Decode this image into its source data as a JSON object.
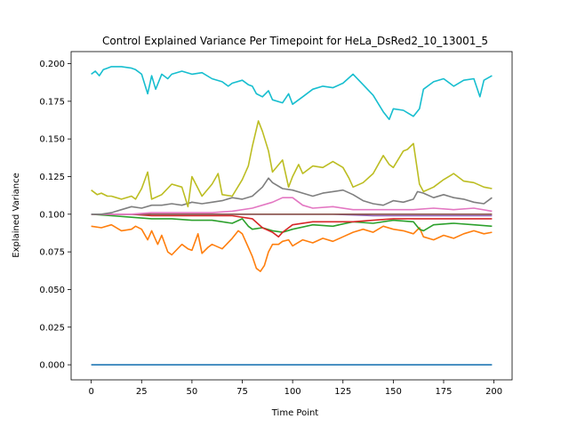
{
  "chart_data": {
    "type": "line",
    "title": "Control Explained Variance Per Timepoint for HeLa_DsRed2_10_13001_5",
    "xlabel": "Time Point",
    "ylabel": "Explained Variance",
    "xlim": [
      -10,
      209
    ],
    "ylim": [
      -0.01,
      0.208
    ],
    "xticks": [
      0,
      25,
      50,
      75,
      100,
      125,
      150,
      175,
      200
    ],
    "xtick_labels": [
      "0",
      "25",
      "50",
      "75",
      "100",
      "125",
      "150",
      "175",
      "200"
    ],
    "yticks": [
      0.0,
      0.025,
      0.05,
      0.075,
      0.1,
      0.125,
      0.15,
      0.175,
      0.2
    ],
    "ytick_labels": [
      "0.000",
      "0.025",
      "0.050",
      "0.075",
      "0.100",
      "0.125",
      "0.150",
      "0.175",
      "0.200"
    ],
    "grid": false,
    "legend": "none",
    "series": [
      {
        "color": "#1f77b4",
        "x": [
          0,
          199
        ],
        "y": [
          0.0,
          0.0
        ]
      },
      {
        "color": "#ff7f0e",
        "x": [
          0,
          5,
          10,
          15,
          20,
          22,
          25,
          28,
          30,
          33,
          35,
          38,
          40,
          45,
          48,
          50,
          53,
          55,
          58,
          60,
          65,
          70,
          73,
          75,
          78,
          80,
          82,
          84,
          86,
          88,
          90,
          93,
          95,
          98,
          100,
          105,
          110,
          115,
          120,
          125,
          130,
          135,
          140,
          145,
          150,
          155,
          160,
          163,
          165,
          170,
          175,
          180,
          185,
          190,
          195,
          199
        ],
        "y": [
          0.092,
          0.091,
          0.093,
          0.089,
          0.09,
          0.092,
          0.09,
          0.083,
          0.089,
          0.08,
          0.086,
          0.075,
          0.073,
          0.08,
          0.077,
          0.076,
          0.087,
          0.074,
          0.078,
          0.08,
          0.077,
          0.084,
          0.089,
          0.087,
          0.078,
          0.072,
          0.064,
          0.062,
          0.066,
          0.075,
          0.08,
          0.08,
          0.082,
          0.083,
          0.079,
          0.083,
          0.081,
          0.084,
          0.082,
          0.085,
          0.088,
          0.09,
          0.088,
          0.092,
          0.09,
          0.089,
          0.087,
          0.091,
          0.085,
          0.083,
          0.086,
          0.084,
          0.087,
          0.089,
          0.087,
          0.088
        ]
      },
      {
        "color": "#2ca02c",
        "x": [
          0,
          10,
          20,
          30,
          40,
          50,
          60,
          70,
          75,
          78,
          80,
          85,
          90,
          95,
          100,
          110,
          120,
          130,
          140,
          150,
          160,
          163,
          165,
          170,
          180,
          190,
          199
        ],
        "y": [
          0.1,
          0.099,
          0.098,
          0.097,
          0.097,
          0.096,
          0.096,
          0.094,
          0.097,
          0.092,
          0.09,
          0.091,
          0.089,
          0.088,
          0.09,
          0.093,
          0.092,
          0.095,
          0.094,
          0.096,
          0.095,
          0.09,
          0.089,
          0.093,
          0.094,
          0.093,
          0.092
        ]
      },
      {
        "color": "#d62728",
        "x": [
          0,
          10,
          20,
          30,
          40,
          50,
          60,
          70,
          80,
          85,
          90,
          93,
          95,
          100,
          110,
          120,
          130,
          140,
          150,
          160,
          170,
          180,
          190,
          199
        ],
        "y": [
          0.1,
          0.1,
          0.1,
          0.099,
          0.099,
          0.099,
          0.099,
          0.099,
          0.097,
          0.091,
          0.088,
          0.085,
          0.088,
          0.093,
          0.095,
          0.095,
          0.095,
          0.096,
          0.097,
          0.097,
          0.097,
          0.097,
          0.097,
          0.097
        ]
      },
      {
        "color": "#9467bd",
        "x": [
          0,
          20,
          40,
          60,
          80,
          100,
          120,
          140,
          160,
          180,
          199
        ],
        "y": [
          0.1,
          0.1,
          0.1,
          0.1,
          0.1,
          0.1,
          0.1,
          0.099,
          0.099,
          0.099,
          0.099
        ]
      },
      {
        "color": "#8c564b",
        "x": [
          0,
          20,
          40,
          60,
          80,
          100,
          120,
          140,
          160,
          180,
          199
        ],
        "y": [
          0.1,
          0.1,
          0.1,
          0.1,
          0.1,
          0.1,
          0.1,
          0.1,
          0.1,
          0.1,
          0.1
        ]
      },
      {
        "color": "#e377c2",
        "x": [
          0,
          10,
          20,
          30,
          40,
          50,
          60,
          70,
          80,
          90,
          95,
          100,
          105,
          110,
          120,
          130,
          140,
          150,
          160,
          170,
          180,
          190,
          199
        ],
        "y": [
          0.1,
          0.1,
          0.1,
          0.101,
          0.101,
          0.101,
          0.101,
          0.102,
          0.104,
          0.108,
          0.111,
          0.111,
          0.106,
          0.104,
          0.105,
          0.103,
          0.103,
          0.103,
          0.103,
          0.104,
          0.103,
          0.104,
          0.102
        ]
      },
      {
        "color": "#7f7f7f",
        "x": [
          0,
          5,
          10,
          15,
          20,
          25,
          30,
          35,
          40,
          45,
          50,
          55,
          60,
          65,
          70,
          75,
          80,
          85,
          88,
          90,
          95,
          100,
          105,
          110,
          115,
          120,
          125,
          130,
          135,
          140,
          145,
          150,
          155,
          160,
          162,
          165,
          170,
          175,
          180,
          185,
          190,
          195,
          199
        ],
        "y": [
          0.1,
          0.1,
          0.101,
          0.103,
          0.105,
          0.104,
          0.106,
          0.106,
          0.107,
          0.106,
          0.108,
          0.107,
          0.108,
          0.109,
          0.111,
          0.11,
          0.112,
          0.118,
          0.124,
          0.121,
          0.117,
          0.116,
          0.114,
          0.112,
          0.114,
          0.115,
          0.116,
          0.113,
          0.109,
          0.107,
          0.106,
          0.109,
          0.108,
          0.11,
          0.115,
          0.114,
          0.111,
          0.113,
          0.111,
          0.11,
          0.108,
          0.107,
          0.111
        ]
      },
      {
        "color": "#bcbd22",
        "x": [
          0,
          3,
          5,
          8,
          10,
          15,
          20,
          22,
          25,
          28,
          30,
          35,
          40,
          45,
          48,
          50,
          55,
          60,
          63,
          65,
          70,
          75,
          78,
          80,
          83,
          85,
          88,
          90,
          95,
          98,
          100,
          103,
          105,
          110,
          115,
          120,
          125,
          128,
          130,
          135,
          140,
          145,
          148,
          150,
          155,
          157,
          160,
          163,
          165,
          170,
          175,
          180,
          185,
          190,
          195,
          199
        ],
        "y": [
          0.116,
          0.113,
          0.114,
          0.112,
          0.112,
          0.11,
          0.112,
          0.11,
          0.117,
          0.128,
          0.11,
          0.113,
          0.12,
          0.118,
          0.105,
          0.125,
          0.112,
          0.12,
          0.127,
          0.113,
          0.112,
          0.123,
          0.132,
          0.145,
          0.162,
          0.155,
          0.142,
          0.128,
          0.136,
          0.118,
          0.125,
          0.133,
          0.127,
          0.132,
          0.131,
          0.135,
          0.131,
          0.124,
          0.118,
          0.121,
          0.127,
          0.139,
          0.133,
          0.131,
          0.142,
          0.143,
          0.147,
          0.12,
          0.115,
          0.118,
          0.123,
          0.127,
          0.122,
          0.121,
          0.118,
          0.117
        ]
      },
      {
        "color": "#17becf",
        "x": [
          0,
          2,
          4,
          6,
          8,
          10,
          15,
          20,
          22,
          25,
          28,
          30,
          32,
          35,
          38,
          40,
          45,
          50,
          55,
          60,
          65,
          68,
          70,
          75,
          78,
          80,
          82,
          85,
          88,
          90,
          95,
          98,
          100,
          105,
          110,
          115,
          120,
          125,
          130,
          135,
          140,
          145,
          148,
          150,
          155,
          160,
          163,
          165,
          170,
          175,
          180,
          185,
          190,
          193,
          195,
          199
        ],
        "y": [
          0.193,
          0.195,
          0.192,
          0.196,
          0.197,
          0.198,
          0.198,
          0.197,
          0.196,
          0.193,
          0.18,
          0.192,
          0.183,
          0.193,
          0.19,
          0.193,
          0.195,
          0.193,
          0.194,
          0.19,
          0.188,
          0.185,
          0.187,
          0.189,
          0.186,
          0.185,
          0.18,
          0.178,
          0.182,
          0.176,
          0.174,
          0.18,
          0.173,
          0.178,
          0.183,
          0.185,
          0.184,
          0.187,
          0.193,
          0.186,
          0.179,
          0.168,
          0.163,
          0.17,
          0.169,
          0.165,
          0.17,
          0.183,
          0.188,
          0.19,
          0.185,
          0.189,
          0.19,
          0.178,
          0.189,
          0.192
        ]
      }
    ]
  }
}
